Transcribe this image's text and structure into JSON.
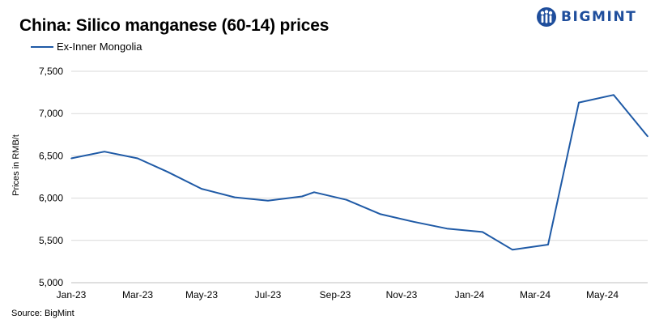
{
  "chart_data": {
    "type": "line",
    "title": "China: Silico manganese (60-14) prices",
    "ylabel": "Prices in RMB/t",
    "xlabel": "",
    "ylim": [
      5000,
      7500
    ],
    "yticks": [
      "5,000",
      "5,500",
      "6,000",
      "6,500",
      "7,000",
      "7,500"
    ],
    "ytick_values": [
      5000,
      5500,
      6000,
      6500,
      7000,
      7500
    ],
    "xticks": [
      "Jan-23",
      "Mar-23",
      "May-23",
      "Jul-23",
      "Sep-23",
      "Nov-23",
      "Jan-24",
      "Mar-24",
      "May-24"
    ],
    "grid": true,
    "legend_position": "top-left",
    "series": [
      {
        "name": "Ex-Inner Mongolia",
        "color": "#1f5aa6",
        "x": [
          "2023-01",
          "2023-02",
          "2023-03",
          "2023-04",
          "2023-05",
          "2023-06",
          "2023-07",
          "2023-08",
          "2023-08b",
          "2023-09",
          "2023-10",
          "2023-11",
          "2023-12",
          "2024-01",
          "2024-02",
          "2024-03",
          "2024-04",
          "2024-05",
          "2024-06"
        ],
        "values": [
          6470,
          6550,
          6470,
          6310,
          6110,
          6010,
          5970,
          6020,
          6070,
          5980,
          5810,
          5720,
          5640,
          5600,
          5390,
          5450,
          7130,
          7220,
          6730
        ]
      }
    ]
  },
  "source": "Source: BigMint",
  "logo": {
    "text": "BIGMINT",
    "color": "#1f4e9c"
  }
}
